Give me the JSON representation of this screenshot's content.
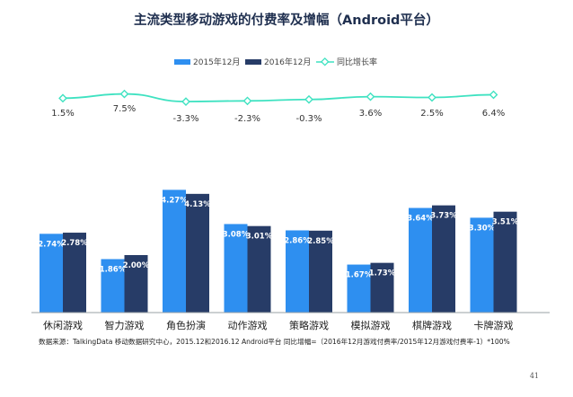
{
  "colors": {
    "series_2015": "#2e8ff0",
    "series_2016": "#273c67",
    "growth_line": "#3fe2c1",
    "title": "#1f2f4f",
    "baseline": "#9aa0a6"
  },
  "chart_data": {
    "type": "bar",
    "title": "主流类型移动游戏的付费率及增幅（Android平台）",
    "categories": [
      "休闲游戏",
      "智力游戏",
      "角色扮演",
      "动作游戏",
      "策略游戏",
      "模拟游戏",
      "棋牌游戏",
      "卡牌游戏"
    ],
    "series": [
      {
        "name": "2015年12月",
        "values": [
          2.74,
          1.86,
          4.27,
          3.08,
          2.86,
          1.67,
          3.64,
          3.3
        ],
        "labels": [
          "2.74%",
          "1.86%",
          "4.27%",
          "3.08%",
          "2.86%",
          "1.67%",
          "3.64%",
          "3.30%"
        ]
      },
      {
        "name": "2016年12月",
        "values": [
          2.78,
          2.0,
          4.13,
          3.01,
          2.85,
          1.73,
          3.73,
          3.51
        ],
        "labels": [
          "2.78%",
          "2.00%",
          "4.13%",
          "3.01%",
          "2.85%",
          "1.73%",
          "3.73%",
          "3.51%"
        ]
      }
    ],
    "growth": {
      "name": "同比增长率",
      "type": "line",
      "values": [
        1.5,
        7.5,
        -3.3,
        -2.3,
        -0.3,
        3.6,
        2.5,
        6.4
      ],
      "labels": [
        "1.5%",
        "7.5%",
        "-3.3%",
        "-2.3%",
        "-0.3%",
        "3.6%",
        "2.5%",
        "6.4%"
      ]
    },
    "legend_position": "top-center",
    "grid": false,
    "ylim": [
      0,
      4.5
    ]
  },
  "footer": {
    "source": "数据来源：TalkingData 移动数据研究中心，2015.12和2016.12 Android平台 同比增幅=（2016年12月游戏付费率/2015年12月游戏付费率-1）*100%",
    "page_number": "41"
  }
}
